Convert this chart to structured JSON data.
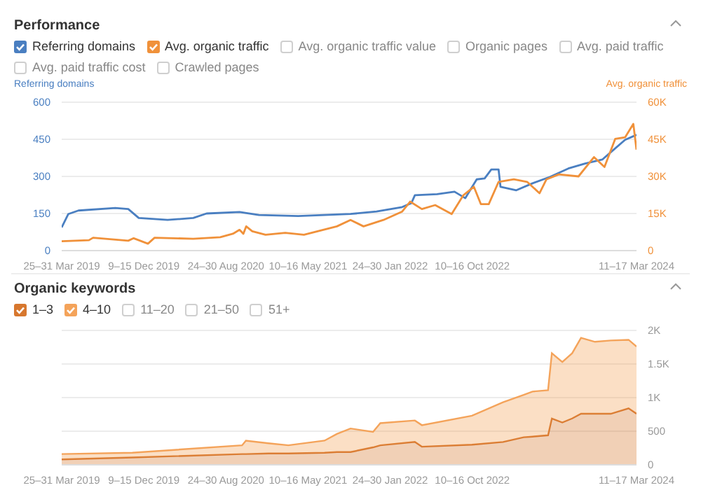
{
  "chart_data": [
    {
      "type": "line",
      "title": "Performance",
      "ylabel": "Referring domains",
      "y2label": "Avg. organic traffic",
      "legend": "top left",
      "grid": "y",
      "annotations": [
        "Avg. organic traffic value",
        "Organic pages",
        "Avg. paid traffic",
        "Avg. paid traffic cost",
        "Crawled pages"
      ],
      "xlim": [
        "2019-03-25",
        "2024-03-11"
      ],
      "xticks": [
        {
          "value": "2019-03-25",
          "label": "25–31 Mar 2019"
        },
        {
          "value": "2019-12-09",
          "label": "9–15 Dec 2019"
        },
        {
          "value": "2020-08-24",
          "label": "24–30 Aug 2020"
        },
        {
          "value": "2021-05-10",
          "label": "10–16 May 2021"
        },
        {
          "value": "2022-01-24",
          "label": "24–30 Jan 2022"
        },
        {
          "value": "2022-10-10",
          "label": "10–16 Oct 2022"
        },
        {
          "value": "2024-03-11",
          "label": "11–17 Mar 2024"
        }
      ],
      "ylim": [
        0,
        600
      ],
      "yticks": [
        0,
        150,
        300,
        450,
        600
      ],
      "y2lim": [
        0,
        60000
      ],
      "y2ticks": [
        {
          "value": 0,
          "label": "0"
        },
        {
          "value": 15000,
          "label": "15K"
        },
        {
          "value": 30000,
          "label": "30K"
        },
        {
          "value": 45000,
          "label": "45K"
        },
        {
          "value": 60000,
          "label": "60K"
        }
      ],
      "series": [
        {
          "name": "Referring domains",
          "color": "#4a7fc1",
          "x": [
            "2019-03-25",
            "2019-04-15",
            "2019-05-17",
            "2019-09-10",
            "2019-10-21",
            "2019-11-23",
            "2020-02-22",
            "2020-05-13",
            "2020-06-24",
            "2020-10-06",
            "2020-12-06",
            "2021-04-09",
            "2021-09-21",
            "2021-12-12",
            "2022-03-03",
            "2022-04-01",
            "2022-04-12",
            "2022-06-21",
            "2022-08-15",
            "2022-09-18",
            "2022-10-24",
            "2022-11-18",
            "2022-12-09",
            "2023-01-01",
            "2023-01-07",
            "2023-02-26",
            "2023-04-18",
            "2023-06-12",
            "2023-08-09",
            "2023-10-01",
            "2023-11-24",
            "2023-12-21",
            "2024-02-04",
            "2024-03-11"
          ],
          "values": [
            94,
            148,
            162,
            172,
            168,
            132,
            124,
            132,
            150,
            156,
            144,
            140,
            148,
            158,
            176,
            192,
            224,
            228,
            238,
            212,
            288,
            292,
            328,
            328,
            258,
            244,
            272,
            298,
            332,
            352,
            368,
            398,
            448,
            468
          ]
        },
        {
          "name": "Avg. organic traffic",
          "color": "#f0913a",
          "axis": "y2",
          "x": [
            "2019-03-25",
            "2019-06-19",
            "2019-07-02",
            "2019-10-21",
            "2019-11-07",
            "2019-12-22",
            "2020-01-12",
            "2020-05-13",
            "2020-08-06",
            "2020-09-15",
            "2020-10-06",
            "2020-10-18",
            "2020-10-27",
            "2020-11-15",
            "2020-12-27",
            "2021-02-27",
            "2021-04-27",
            "2021-08-09",
            "2021-09-21",
            "2021-11-01",
            "2022-01-03",
            "2022-03-03",
            "2022-03-28",
            "2022-05-04",
            "2022-06-15",
            "2022-08-06",
            "2022-09-12",
            "2022-10-15",
            "2022-11-06",
            "2022-12-01",
            "2023-01-01",
            "2023-02-18",
            "2023-04-01",
            "2023-05-10",
            "2023-06-01",
            "2023-07-10",
            "2023-09-10",
            "2023-10-29",
            "2023-12-01",
            "2024-01-04",
            "2024-02-04",
            "2024-03-01",
            "2024-03-11"
          ],
          "values": [
            3800,
            4200,
            5200,
            4000,
            5000,
            2800,
            5200,
            4800,
            5400,
            6800,
            8400,
            6800,
            9800,
            7800,
            6400,
            7200,
            6400,
            9800,
            12400,
            9800,
            12400,
            15800,
            19800,
            16800,
            18400,
            14800,
            22400,
            25800,
            18800,
            18800,
            27800,
            28800,
            27800,
            23200,
            28800,
            30800,
            30000,
            37800,
            33800,
            45200,
            45800,
            51200,
            40800
          ]
        }
      ]
    },
    {
      "type": "area",
      "title": "Organic keywords",
      "legend": "top left",
      "grid": "y",
      "stacked": true,
      "annotations": [
        "11–20",
        "21–50",
        "51+"
      ],
      "xlim": [
        "2019-03-25",
        "2024-03-11"
      ],
      "xticks": [
        {
          "value": "2019-03-25",
          "label": "25–31 Mar 2019"
        },
        {
          "value": "2019-12-09",
          "label": "9–15 Dec 2019"
        },
        {
          "value": "2020-08-24",
          "label": "24–30 Aug 2020"
        },
        {
          "value": "2021-05-10",
          "label": "10–16 May 2021"
        },
        {
          "value": "2022-01-24",
          "label": "24–30 Jan 2022"
        },
        {
          "value": "2022-10-10",
          "label": "10–16 Oct 2022"
        },
        {
          "value": "2024-03-11",
          "label": "11–17 Mar 2024"
        }
      ],
      "y2lim": [
        0,
        2000
      ],
      "y2ticks": [
        {
          "value": 0,
          "label": "0"
        },
        {
          "value": 500,
          "label": "500"
        },
        {
          "value": 1000,
          "label": "1K"
        },
        {
          "value": 1500,
          "label": "1.5K"
        },
        {
          "value": 2000,
          "label": "2K"
        }
      ],
      "x": [
        "2019-03-25",
        "2019-11-03",
        "2020-10-14",
        "2020-10-26",
        "2021-01-05",
        "2021-03-09",
        "2021-07-01",
        "2021-08-09",
        "2021-09-21",
        "2021-12-01",
        "2021-12-24",
        "2022-04-12",
        "2022-05-04",
        "2022-10-09",
        "2023-01-15",
        "2023-03-21",
        "2023-04-18",
        "2023-06-06",
        "2023-06-18",
        "2023-07-21",
        "2023-08-21",
        "2023-09-18",
        "2023-11-01",
        "2023-12-21",
        "2024-02-15",
        "2024-03-11"
      ],
      "series": [
        {
          "name": "1–3",
          "color": "#d7772e",
          "axis": "y2",
          "values": [
            80,
            110,
            160,
            160,
            170,
            170,
            180,
            190,
            190,
            260,
            290,
            340,
            270,
            300,
            340,
            410,
            420,
            440,
            690,
            630,
            690,
            760,
            760,
            760,
            840,
            760
          ]
        },
        {
          "name": "4–10",
          "color": "#f4a35a",
          "axis": "y2",
          "values": [
            80,
            70,
            130,
            200,
            150,
            120,
            180,
            270,
            350,
            230,
            330,
            320,
            320,
            430,
            590,
            630,
            670,
            670,
            970,
            900,
            970,
            1130,
            1070,
            1090,
            1020,
            1000
          ]
        }
      ]
    }
  ]
}
